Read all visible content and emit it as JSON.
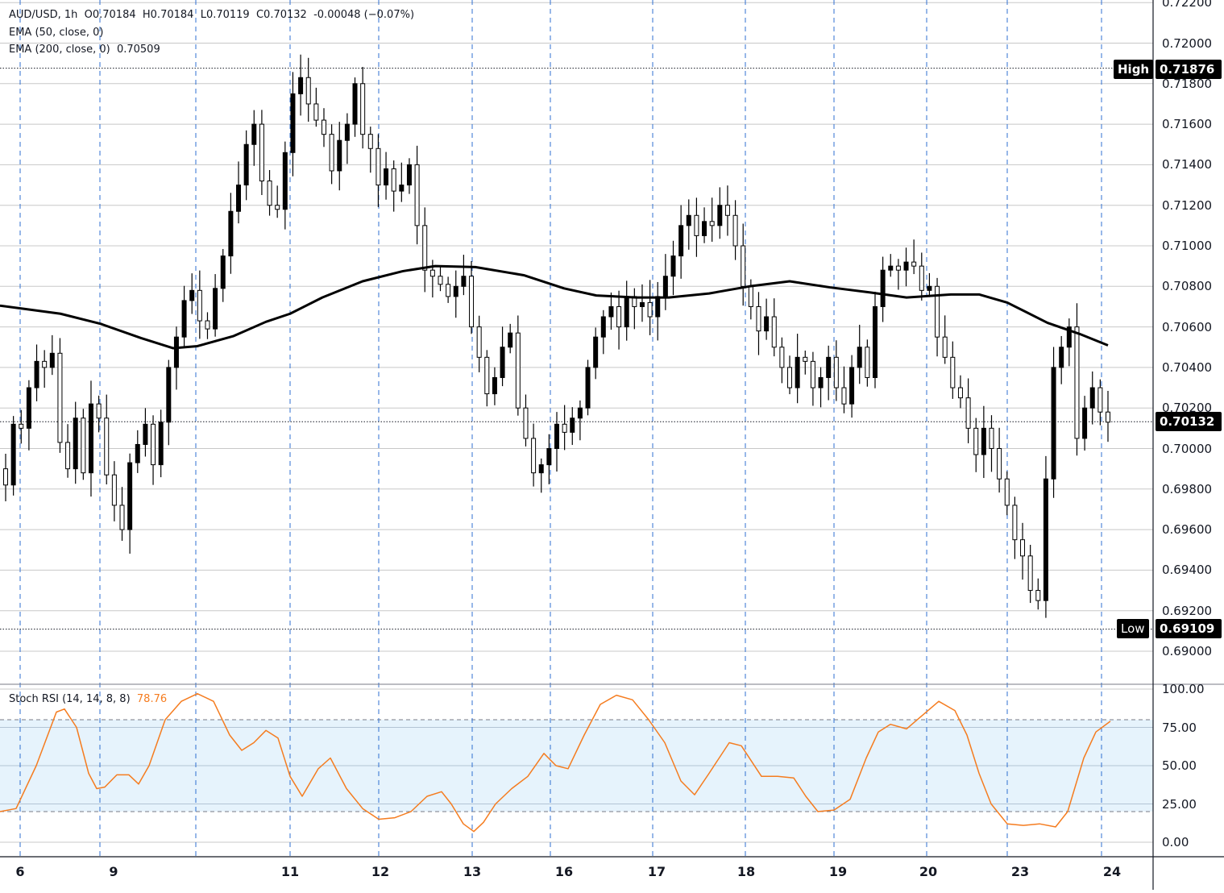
{
  "header": {
    "symbol": "AUD/USD, 1h",
    "open": "O0.70184",
    "high": "H0.70184",
    "low": "L0.70119",
    "close": "C0.70132",
    "change": "-0.00048 (−0.07%)",
    "ema50_label": "EMA (50, close, 0)",
    "ema200_label": "EMA (200, close, 0)",
    "ema200_value": "0.70509"
  },
  "price_axis": {
    "labels": [
      "0.72200",
      "0.72000",
      "0.71800",
      "0.71600",
      "0.71400",
      "0.71200",
      "0.71000",
      "0.70800",
      "0.70600",
      "0.70400",
      "0.70200",
      "0.70000",
      "0.69800",
      "0.69600",
      "0.69400",
      "0.69200",
      "0.69000"
    ],
    "high_tag": "High",
    "high_value": "0.71876",
    "last_value": "0.70132",
    "low_tag": "Low",
    "low_value": "0.69109"
  },
  "rsi": {
    "label": "Stoch RSI (14, 14, 8, 8)",
    "value": "78.76",
    "axis_labels": [
      "100.00",
      "75.00",
      "50.00",
      "25.00",
      "0.00"
    ],
    "upper_band": 80,
    "lower_band": 20
  },
  "time_axis": {
    "labels": [
      "6",
      "9",
      "11",
      "12",
      "13",
      "16",
      "17",
      "18",
      "19",
      "20",
      "23",
      "24"
    ]
  },
  "colors": {
    "line_orange": "#f57c1f",
    "grid": "#c8c8c8",
    "session_divider": "#2f6fd0",
    "band_fill": "#e6f3fc",
    "candle": "#000000"
  },
  "chart_data": {
    "type": "candlestick",
    "title": "AUD/USD, 1h",
    "ylim": [
      0.6893,
      0.7222
    ],
    "x_ticks": [
      "6",
      "9",
      "11",
      "12",
      "13",
      "16",
      "17",
      "18",
      "19",
      "20",
      "23",
      "24"
    ],
    "y_ticks": [
      0.722,
      0.72,
      0.718,
      0.716,
      0.714,
      0.712,
      0.71,
      0.708,
      0.706,
      0.704,
      0.702,
      0.7,
      0.698,
      0.696,
      0.694,
      0.692,
      0.69
    ],
    "annotations": {
      "high": 0.71876,
      "low": 0.69109,
      "last": 0.70132
    },
    "close_path": [
      0.6982,
      0.7012,
      0.701,
      0.703,
      0.7043,
      0.704,
      0.7047,
      0.7003,
      0.699,
      0.7015,
      0.6988,
      0.7022,
      0.7015,
      0.6987,
      0.6972,
      0.696,
      0.6993,
      0.7002,
      0.7012,
      0.6992,
      0.7013,
      0.704,
      0.7055,
      0.7073,
      0.7078,
      0.7063,
      0.7059,
      0.7079,
      0.7095,
      0.7117,
      0.713,
      0.715,
      0.716,
      0.7132,
      0.712,
      0.7118,
      0.7146,
      0.7175,
      0.7183,
      0.717,
      0.7162,
      0.7155,
      0.7137,
      0.7152,
      0.716,
      0.718,
      0.7155,
      0.7148,
      0.713,
      0.7138,
      0.7127,
      0.713,
      0.714,
      0.711,
      0.7088,
      0.7085,
      0.7081,
      0.7075,
      0.708,
      0.7085,
      0.706,
      0.7045,
      0.7027,
      0.7035,
      0.705,
      0.7057,
      0.702,
      0.7005,
      0.6988,
      0.6992,
      0.7,
      0.7012,
      0.7008,
      0.7015,
      0.702,
      0.704,
      0.7055,
      0.7065,
      0.707,
      0.706,
      0.7075,
      0.707,
      0.7072,
      0.7065,
      0.7075,
      0.7085,
      0.7095,
      0.711,
      0.7115,
      0.7105,
      0.7112,
      0.711,
      0.712,
      0.7115,
      0.71,
      0.708,
      0.707,
      0.7058,
      0.7065,
      0.705,
      0.704,
      0.703,
      0.7045,
      0.7043,
      0.703,
      0.7035,
      0.7045,
      0.703,
      0.7022,
      0.704,
      0.705,
      0.7035,
      0.707,
      0.7088,
      0.709,
      0.7088,
      0.7092,
      0.709,
      0.7078,
      0.708,
      0.7055,
      0.7045,
      0.703,
      0.7025,
      0.701,
      0.6997,
      0.701,
      0.7,
      0.6985,
      0.6972,
      0.6955,
      0.6947,
      0.693,
      0.6925,
      0.6985,
      0.704,
      0.705,
      0.706,
      0.7005,
      0.702,
      0.703,
      0.7018,
      0.7013
    ],
    "ema200": [
      [
        0,
        0.70705
      ],
      [
        75,
        0.70665
      ],
      [
        125,
        0.70615
      ],
      [
        175,
        0.70545
      ],
      [
        215,
        0.70495
      ],
      [
        245,
        0.70505
      ],
      [
        290,
        0.70555
      ],
      [
        330,
        0.70625
      ],
      [
        360,
        0.70665
      ],
      [
        400,
        0.70745
      ],
      [
        450,
        0.70825
      ],
      [
        500,
        0.70875
      ],
      [
        540,
        0.709
      ],
      [
        590,
        0.70895
      ],
      [
        650,
        0.70855
      ],
      [
        700,
        0.7079
      ],
      [
        740,
        0.70755
      ],
      [
        790,
        0.70745
      ],
      [
        830,
        0.70745
      ],
      [
        880,
        0.70765
      ],
      [
        930,
        0.708
      ],
      [
        980,
        0.70825
      ],
      [
        1030,
        0.70795
      ],
      [
        1080,
        0.7077
      ],
      [
        1125,
        0.70745
      ],
      [
        1180,
        0.7076
      ],
      [
        1215,
        0.7076
      ],
      [
        1250,
        0.7072
      ],
      [
        1300,
        0.7062
      ],
      [
        1340,
        0.70565
      ],
      [
        1375,
        0.70509
      ]
    ],
    "stoch_rsi": [
      [
        0,
        20
      ],
      [
        20,
        22
      ],
      [
        45,
        50
      ],
      [
        70,
        85
      ],
      [
        80,
        87
      ],
      [
        95,
        75
      ],
      [
        110,
        45
      ],
      [
        120,
        35
      ],
      [
        130,
        36
      ],
      [
        145,
        44
      ],
      [
        160,
        44
      ],
      [
        172,
        38
      ],
      [
        185,
        50
      ],
      [
        205,
        80
      ],
      [
        225,
        92
      ],
      [
        245,
        97
      ],
      [
        265,
        92
      ],
      [
        285,
        70
      ],
      [
        300,
        60
      ],
      [
        315,
        65
      ],
      [
        330,
        73
      ],
      [
        345,
        68
      ],
      [
        360,
        43
      ],
      [
        375,
        30
      ],
      [
        395,
        48
      ],
      [
        410,
        55
      ],
      [
        430,
        35
      ],
      [
        450,
        22
      ],
      [
        470,
        15
      ],
      [
        490,
        16
      ],
      [
        510,
        20
      ],
      [
        530,
        30
      ],
      [
        548,
        33
      ],
      [
        560,
        25
      ],
      [
        575,
        12
      ],
      [
        588,
        7
      ],
      [
        600,
        13
      ],
      [
        615,
        25
      ],
      [
        635,
        35
      ],
      [
        655,
        43
      ],
      [
        675,
        58
      ],
      [
        690,
        50
      ],
      [
        705,
        48
      ],
      [
        725,
        70
      ],
      [
        745,
        90
      ],
      [
        765,
        96
      ],
      [
        785,
        93
      ],
      [
        805,
        80
      ],
      [
        825,
        65
      ],
      [
        845,
        40
      ],
      [
        862,
        31
      ],
      [
        880,
        45
      ],
      [
        905,
        65
      ],
      [
        920,
        63
      ],
      [
        945,
        43
      ],
      [
        965,
        43
      ],
      [
        985,
        42
      ],
      [
        1000,
        30
      ],
      [
        1015,
        20
      ],
      [
        1035,
        21
      ],
      [
        1055,
        28
      ],
      [
        1075,
        55
      ],
      [
        1090,
        72
      ],
      [
        1105,
        77
      ],
      [
        1125,
        74
      ],
      [
        1145,
        83
      ],
      [
        1165,
        92
      ],
      [
        1185,
        86
      ],
      [
        1200,
        70
      ],
      [
        1215,
        45
      ],
      [
        1230,
        25
      ],
      [
        1250,
        12
      ],
      [
        1270,
        11
      ],
      [
        1290,
        12
      ],
      [
        1310,
        10
      ],
      [
        1325,
        20
      ],
      [
        1345,
        55
      ],
      [
        1360,
        72
      ],
      [
        1378,
        79
      ]
    ]
  }
}
